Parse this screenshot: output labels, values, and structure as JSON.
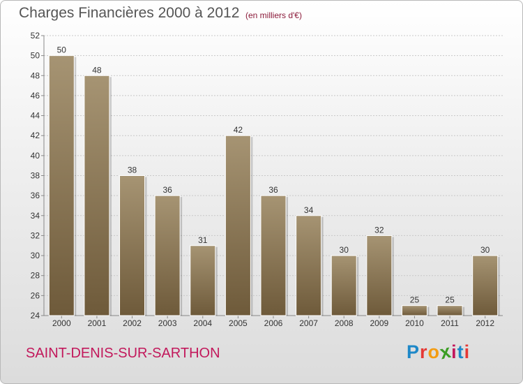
{
  "header": {
    "title": "Charges Financières 2000 à 2012",
    "subtitle": "(en milliers d'€)"
  },
  "footer": {
    "commune": "SAINT-DENIS-SUR-SARTHON",
    "logo_letters": [
      "P",
      "r",
      "o",
      "x",
      "i",
      "t",
      "i"
    ],
    "logo_colors": [
      "#1e88c8",
      "#e53935",
      "#f39c12",
      "#3a9d23",
      "#c2185b",
      "#1e88c8",
      "#e53935"
    ]
  },
  "chart_data": {
    "type": "bar",
    "categories": [
      "2000",
      "2001",
      "2002",
      "2003",
      "2004",
      "2005",
      "2006",
      "2007",
      "2008",
      "2009",
      "2010",
      "2011",
      "2012"
    ],
    "values": [
      50,
      48,
      38,
      36,
      31,
      42,
      36,
      34,
      30,
      32,
      25,
      25,
      30
    ],
    "title": "Charges Financières 2000 à 2012",
    "subtitle": "(en milliers d'€)",
    "ylim": [
      24,
      52
    ],
    "yticks": [
      24,
      26,
      28,
      30,
      32,
      34,
      36,
      38,
      40,
      42,
      44,
      46,
      48,
      50,
      52
    ],
    "grid": true,
    "bar_color_top": "#a69473",
    "bar_color_bottom": "#6e5a3a"
  }
}
